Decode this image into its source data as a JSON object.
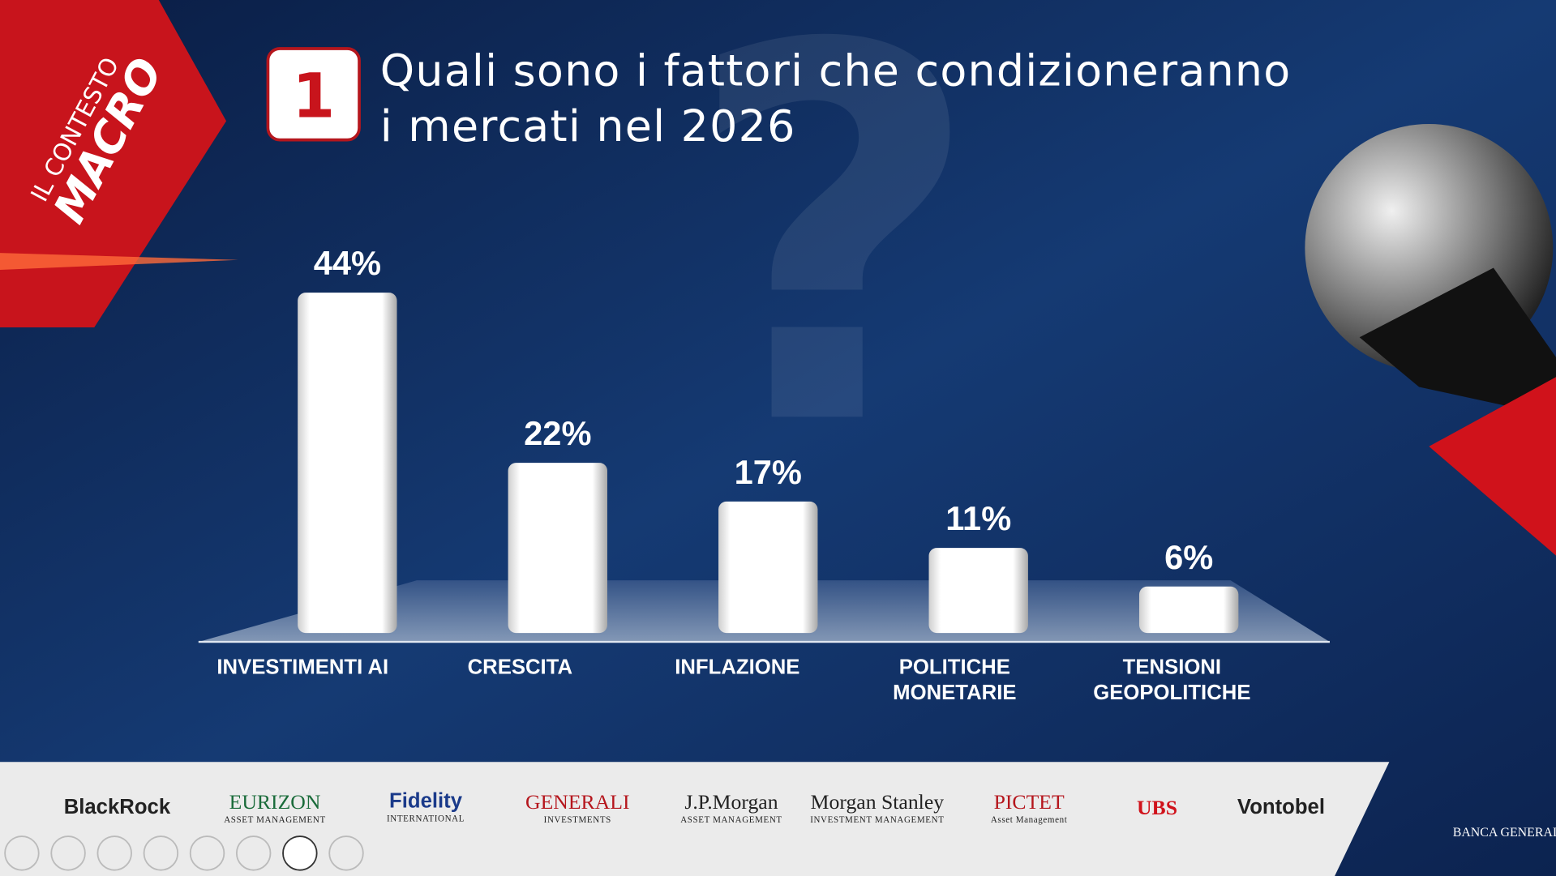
{
  "banner": {
    "line1": "IL CONTESTO",
    "line2": "MACRO"
  },
  "question_number": "1",
  "chart_data": {
    "type": "bar",
    "title": "Quali sono i fattori che condizioneranno i mercati nel 2026",
    "categories": [
      "INVESTIMENTI AI",
      "CRESCITA",
      "INFLAZIONE",
      "POLITICHE MONETARIE",
      "TENSIONI GEOPOLITICHE"
    ],
    "values": [
      44,
      22,
      17,
      11,
      6
    ],
    "value_labels": [
      "44%",
      "22%",
      "17%",
      "11%",
      "6%"
    ],
    "color": "#ffffff"
  },
  "logos": [
    {
      "name": "BlackRock"
    },
    {
      "name": "EURIZON",
      "sub": "ASSET MANAGEMENT"
    },
    {
      "name": "Fidelity",
      "sub": "INTERNATIONAL"
    },
    {
      "name": "GENERALI",
      "sub": "INVESTMENTS"
    },
    {
      "name": "J.P.Morgan",
      "sub": "ASSET MANAGEMENT"
    },
    {
      "name": "Morgan Stanley",
      "sub": "INVESTMENT MANAGEMENT"
    },
    {
      "name": "PICTET",
      "sub": "Asset Management"
    },
    {
      "name": "UBS"
    },
    {
      "name": "Vontobel"
    }
  ],
  "brand": "BANCA GENERALI PRIVATE"
}
